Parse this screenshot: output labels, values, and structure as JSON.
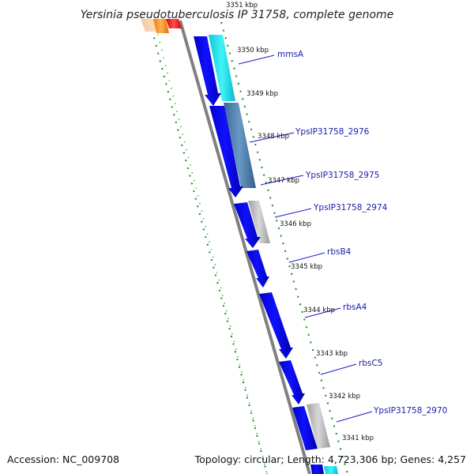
{
  "header": {
    "title": "Yersinia pseudotuberculosis IP 31758, complete genome",
    "top_tick": "3351 kbp"
  },
  "footer": {
    "accession": "Accession: NC_009708",
    "summary": "Topology: circular; Length: 4,723,306 bp; Genes: 4,257"
  },
  "ticks": [
    "3350 kbp",
    "3349 kbp",
    "3348 kbp",
    "3347 kbp",
    "3346 kbp",
    "3345 kbp",
    "3344 kbp",
    "3343 kbp",
    "3342 kbp",
    "3341 kbp"
  ],
  "genes": [
    {
      "label": "mmsA"
    },
    {
      "label": "YpsIP31758_2976"
    },
    {
      "label": "YpsIP31758_2975"
    },
    {
      "label": "YpsIP31758_2974"
    },
    {
      "label": "rbsB4"
    },
    {
      "label": "rbsA4"
    },
    {
      "label": "rbsC5"
    },
    {
      "label": "YpsIP31758_2970"
    }
  ],
  "colors": {
    "gene_arrow": "#0000ee",
    "backbone": "#808080",
    "tick_dots": "#1a8a1a",
    "label_line": "#1a1ac8",
    "cog_cyan": "#22e0e8",
    "cog_steelblue": "#4b7fb0",
    "cog_gray": "#b8b8b8",
    "cog_orange": "#ff9a1a",
    "cog_red": "#ff1a1a"
  }
}
